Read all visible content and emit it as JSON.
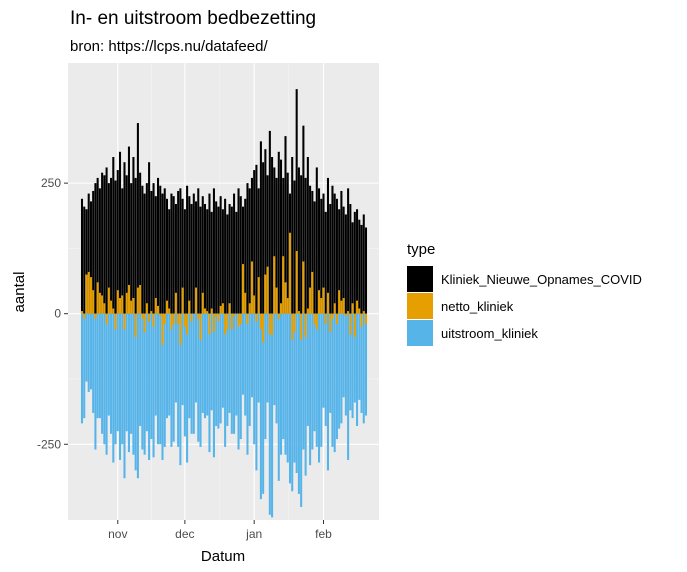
{
  "title": "In- en uitstroom bedbezetting",
  "subtitle": "bron: https://lcps.nu/datafeed/",
  "colors": {
    "panel_bg": "#ebebeb",
    "grid_major": "#ffffff",
    "grid_minor": "#f5f5f5",
    "Kliniek_Nieuwe_Opnames_COVID": "#000000",
    "netto_kliniek": "#E69F00",
    "uitstroom_kliniek": "#56B4E9"
  },
  "chart_data": {
    "type": "bar",
    "title": "In- en uitstroom bedbezetting",
    "subtitle": "bron: https://lcps.nu/datafeed/",
    "xlabel": "Datum",
    "ylabel": "aantal",
    "x_start": "2020-10-16",
    "x_ticks": [
      {
        "label": "nov",
        "date": "2020-11-01"
      },
      {
        "label": "dec",
        "date": "2020-12-01"
      },
      {
        "label": "jan",
        "date": "2021-01-01"
      },
      {
        "label": "feb",
        "date": "2021-02-01"
      }
    ],
    "y_ticks": [
      250,
      0,
      -250
    ],
    "ylim": [
      -395,
      480
    ],
    "grid": true,
    "legend_position": "right",
    "legend_title": "type",
    "legend_entries": [
      "Kliniek_Nieuwe_Opnames_COVID",
      "netto_kliniek",
      "uitstroom_kliniek"
    ],
    "series": [
      {
        "name": "Kliniek_Nieuwe_Opnames_COVID",
        "values": [
          220,
          205,
          200,
          230,
          215,
          235,
          250,
          260,
          240,
          270,
          265,
          280,
          250,
          260,
          300,
          255,
          275,
          310,
          240,
          290,
          265,
          320,
          250,
          300,
          260,
          365,
          270,
          245,
          230,
          250,
          290,
          235,
          250,
          225,
          260,
          245,
          230,
          240,
          220,
          200,
          230,
          225,
          210,
          235,
          240,
          220,
          200,
          245,
          225,
          210,
          230,
          215,
          240,
          205,
          225,
          210,
          200,
          230,
          195,
          240,
          215,
          205,
          225,
          200,
          220,
          190,
          210,
          205,
          230,
          195,
          240,
          225,
          205,
          220,
          250,
          240,
          260,
          275,
          285,
          240,
          330,
          290,
          315,
          265,
          350,
          300,
          280,
          260,
          310,
          295,
          260,
          340,
          270,
          230,
          300,
          255,
          430,
          280,
          265,
          360,
          260,
          300,
          245,
          235,
          215,
          280,
          240,
          220,
          230,
          195,
          260,
          210,
          245,
          230,
          220,
          200,
          235,
          205,
          190,
          240,
          210,
          175,
          195,
          200,
          180,
          170,
          190,
          165
        ]
      },
      {
        "name": "netto_kliniek",
        "values": [
          5,
          -10,
          75,
          80,
          70,
          45,
          -10,
          60,
          40,
          35,
          20,
          -20,
          50,
          25,
          10,
          -30,
          45,
          30,
          35,
          -30,
          40,
          55,
          25,
          30,
          -45,
          50,
          55,
          -10,
          -35,
          20,
          -15,
          5,
          -25,
          30,
          15,
          -5,
          -60,
          -20,
          25,
          10,
          -30,
          -20,
          40,
          -20,
          -60,
          50,
          -25,
          -40,
          25,
          -15,
          0,
          50,
          -10,
          -50,
          40,
          10,
          5,
          -40,
          10,
          -35,
          -5,
          -15,
          15,
          20,
          -40,
          -30,
          20,
          -30,
          -5,
          0,
          -25,
          -20,
          95,
          40,
          -20,
          20,
          100,
          35,
          -15,
          70,
          -30,
          -55,
          75,
          90,
          -40,
          -40,
          110,
          50,
          -10,
          20,
          110,
          60,
          30,
          155,
          -50,
          -35,
          120,
          5,
          -50,
          100,
          -45,
          10,
          50,
          80,
          -20,
          -30,
          45,
          30,
          50,
          -20,
          40,
          -35,
          -10,
          20,
          -20,
          45,
          25,
          30,
          -5,
          5,
          -40,
          20,
          -45,
          25,
          10,
          -25,
          5,
          -20,
          -10,
          -30
        ]
      },
      {
        "name": "uitstroom_kliniek",
        "values": [
          -210,
          -200,
          -130,
          -150,
          -145,
          -190,
          -260,
          -200,
          -200,
          -230,
          -250,
          -270,
          -195,
          -230,
          -285,
          -250,
          -225,
          -280,
          -250,
          -315,
          -225,
          -265,
          -230,
          -270,
          -300,
          -315,
          -215,
          -260,
          -270,
          -225,
          -280,
          -240,
          -275,
          -195,
          -250,
          -250,
          -280,
          -255,
          -200,
          -195,
          -255,
          -245,
          -170,
          -255,
          -290,
          -175,
          -235,
          -285,
          -200,
          -230,
          -230,
          -170,
          -245,
          -255,
          -190,
          -200,
          -195,
          -265,
          -185,
          -275,
          -215,
          -220,
          -210,
          -180,
          -255,
          -215,
          -190,
          -230,
          -230,
          -195,
          -260,
          -240,
          -155,
          -195,
          -270,
          -215,
          -160,
          -250,
          -300,
          -170,
          -355,
          -345,
          -240,
          -170,
          -385,
          -390,
          -175,
          -210,
          -320,
          -270,
          -240,
          -270,
          -285,
          -325,
          -340,
          -285,
          -305,
          -345,
          -370,
          -260,
          -310,
          -215,
          -290,
          -260,
          -225,
          -255,
          -285,
          -255,
          -180,
          -215,
          -300,
          -190,
          -255,
          -265,
          -240,
          -220,
          -210,
          -160,
          -195,
          -280,
          -185,
          -200,
          -170,
          -215,
          -165,
          -190,
          -210,
          -195
        ]
      }
    ]
  }
}
